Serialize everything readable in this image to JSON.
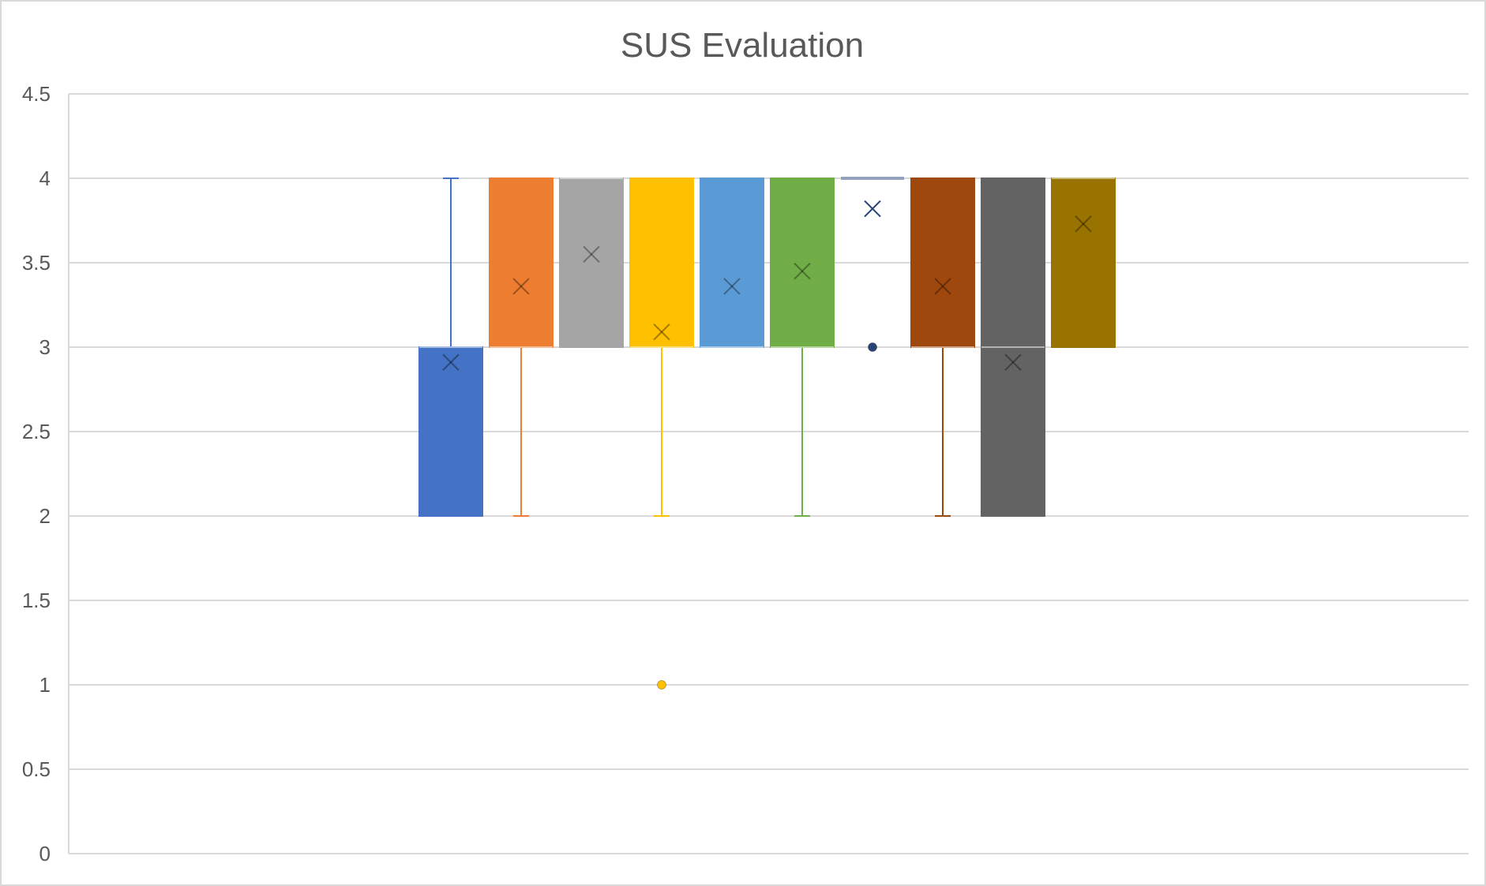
{
  "chart_data": {
    "type": "boxplot",
    "title": "SUS Evaluation",
    "xlabel": "",
    "ylabel": "",
    "ylim": [
      0,
      4.5
    ],
    "yticks": [
      0,
      0.5,
      1,
      1.5,
      2,
      2.5,
      3,
      3.5,
      4,
      4.5
    ],
    "ytick_labels": [
      "0",
      "0.5",
      "1",
      "1.5",
      "2",
      "2.5",
      "3",
      "3.5",
      "4",
      "4.5"
    ],
    "grid": true,
    "legend": "none",
    "series": [
      {
        "color": "#4472C4",
        "min": 2,
        "q1": 2,
        "median": 3,
        "q3": 3,
        "max": 4,
        "mean": 2.91,
        "outliers": []
      },
      {
        "color": "#ED7D31",
        "min": 2,
        "q1": 3,
        "median": 3,
        "q3": 4,
        "max": 4,
        "mean": 3.36,
        "outliers": []
      },
      {
        "color": "#A5A5A5",
        "min": 3,
        "q1": 3,
        "median": 4,
        "q3": 4,
        "max": 4,
        "mean": 3.55,
        "outliers": []
      },
      {
        "color": "#FFC000",
        "min": 2,
        "q1": 3,
        "median": 3,
        "q3": 4,
        "max": 4,
        "mean": 3.09,
        "outliers": [
          1
        ]
      },
      {
        "color": "#5B9BD5",
        "min": 3,
        "q1": 3,
        "median": 3,
        "q3": 4,
        "max": 4,
        "mean": 3.36,
        "outliers": []
      },
      {
        "color": "#70AD47",
        "min": 2,
        "q1": 3,
        "median": 3,
        "q3": 4,
        "max": 4,
        "mean": 3.45,
        "outliers": []
      },
      {
        "color": "#264478",
        "min": 4,
        "q1": 4,
        "median": 4,
        "q3": 4,
        "max": 4,
        "mean": 3.82,
        "outliers": [
          3
        ]
      },
      {
        "color": "#9E480E",
        "min": 2,
        "q1": 3,
        "median": 3,
        "q3": 4,
        "max": 4,
        "mean": 3.36,
        "outliers": []
      },
      {
        "color": "#636363",
        "min": 2,
        "q1": 2,
        "median": 3,
        "q3": 4,
        "max": 4,
        "mean": 2.91,
        "outliers": []
      },
      {
        "color": "#997300",
        "min": 3,
        "q1": 3,
        "median": 4,
        "q3": 4,
        "max": 4,
        "mean": 3.73,
        "outliers": []
      }
    ]
  }
}
